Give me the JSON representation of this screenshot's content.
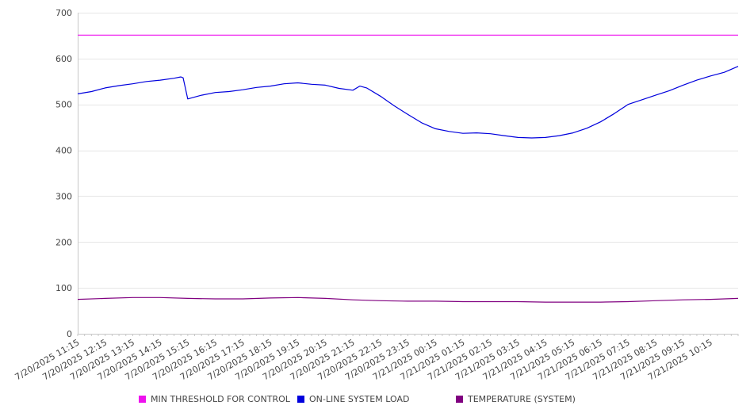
{
  "chart_data": {
    "type": "line",
    "title": "",
    "xlabel": "",
    "ylabel": "",
    "ylim": [
      0,
      700
    ],
    "yticks": [
      0,
      100,
      200,
      300,
      400,
      500,
      600,
      700
    ],
    "grid": true,
    "legend_position": "bottom",
    "x_tick_labels": [
      "7/20/2025 11:15",
      "7/20/2025 12:15",
      "7/20/2025 13:15",
      "7/20/2025 14:15",
      "7/20/2025 15:15",
      "7/20/2025 16:15",
      "7/20/2025 17:15",
      "7/20/2025 18:15",
      "7/20/2025 19:15",
      "7/20/2025 20:15",
      "7/20/2025 21:15",
      "7/20/2025 22:15",
      "7/20/2025 23:15",
      "7/21/2025 00:15",
      "7/21/2025 01:15",
      "7/21/2025 02:15",
      "7/21/2025 03:15",
      "7/21/2025 04:15",
      "7/21/2025 05:15",
      "7/21/2025 06:15",
      "7/21/2025 07:15",
      "7/21/2025 08:15",
      "7/21/2025 09:15",
      "7/21/2025 10:15"
    ],
    "x_start": "7/20/2025 11:15",
    "x_end": "7/21/2025 11:15",
    "series": [
      {
        "name": "MIN THRESHOLD FOR CONTROL",
        "color": "#ee11ee",
        "x": [
          "7/20/2025 11:15",
          "7/21/2025 11:15"
        ],
        "y": [
          651,
          651
        ]
      },
      {
        "name": "ON-LINE SYSTEM LOAD",
        "color": "#0000dd",
        "x": [
          "7/20/2025 11:15",
          "7/20/2025 11:45",
          "7/20/2025 12:15",
          "7/20/2025 12:45",
          "7/20/2025 13:15",
          "7/20/2025 13:45",
          "7/20/2025 14:15",
          "7/20/2025 14:45",
          "7/20/2025 15:00",
          "7/20/2025 15:05",
          "7/20/2025 15:15",
          "7/20/2025 15:45",
          "7/20/2025 16:15",
          "7/20/2025 16:45",
          "7/20/2025 17:15",
          "7/20/2025 17:45",
          "7/20/2025 18:15",
          "7/20/2025 18:45",
          "7/20/2025 19:15",
          "7/20/2025 19:45",
          "7/20/2025 20:15",
          "7/20/2025 20:45",
          "7/20/2025 21:15",
          "7/20/2025 21:30",
          "7/20/2025 21:45",
          "7/20/2025 22:15",
          "7/20/2025 22:45",
          "7/20/2025 23:15",
          "7/20/2025 23:45",
          "7/21/2025 00:15",
          "7/21/2025 00:45",
          "7/21/2025 01:15",
          "7/21/2025 01:45",
          "7/21/2025 02:15",
          "7/21/2025 02:45",
          "7/21/2025 03:15",
          "7/21/2025 03:45",
          "7/21/2025 04:15",
          "7/21/2025 04:45",
          "7/21/2025 05:15",
          "7/21/2025 05:45",
          "7/21/2025 06:15",
          "7/21/2025 06:45",
          "7/21/2025 07:15",
          "7/21/2025 07:45",
          "7/21/2025 08:15",
          "7/21/2025 08:45",
          "7/21/2025 09:15",
          "7/21/2025 09:45",
          "7/21/2025 10:15",
          "7/21/2025 10:45",
          "7/21/2025 11:15"
        ],
        "y": [
          523,
          528,
          536,
          541,
          545,
          550,
          553,
          557,
          560,
          558,
          512,
          520,
          526,
          528,
          532,
          537,
          540,
          545,
          547,
          544,
          542,
          535,
          531,
          540,
          536,
          518,
          497,
          478,
          460,
          447,
          441,
          437,
          438,
          436,
          432,
          428,
          427,
          428,
          432,
          438,
          448,
          462,
          480,
          500,
          510,
          520,
          530,
          542,
          553,
          562,
          570,
          583
        ]
      },
      {
        "name": "TEMPERATURE (SYSTEM)",
        "color": "#800080",
        "x": [
          "7/20/2025 11:15",
          "7/20/2025 12:15",
          "7/20/2025 13:15",
          "7/20/2025 14:15",
          "7/20/2025 15:15",
          "7/20/2025 16:15",
          "7/20/2025 17:15",
          "7/20/2025 18:15",
          "7/20/2025 19:15",
          "7/20/2025 20:15",
          "7/20/2025 21:15",
          "7/20/2025 22:15",
          "7/20/2025 23:15",
          "7/21/2025 00:15",
          "7/21/2025 01:15",
          "7/21/2025 02:15",
          "7/21/2025 03:15",
          "7/21/2025 04:15",
          "7/21/2025 05:15",
          "7/21/2025 06:15",
          "7/21/2025 07:15",
          "7/21/2025 08:15",
          "7/21/2025 09:15",
          "7/21/2025 10:15",
          "7/21/2025 11:15"
        ],
        "y": [
          75,
          77,
          79,
          79,
          77,
          76,
          76,
          78,
          79,
          77,
          74,
          72,
          71,
          71,
          70,
          70,
          70,
          69,
          69,
          69,
          70,
          72,
          74,
          75,
          77
        ]
      }
    ]
  }
}
